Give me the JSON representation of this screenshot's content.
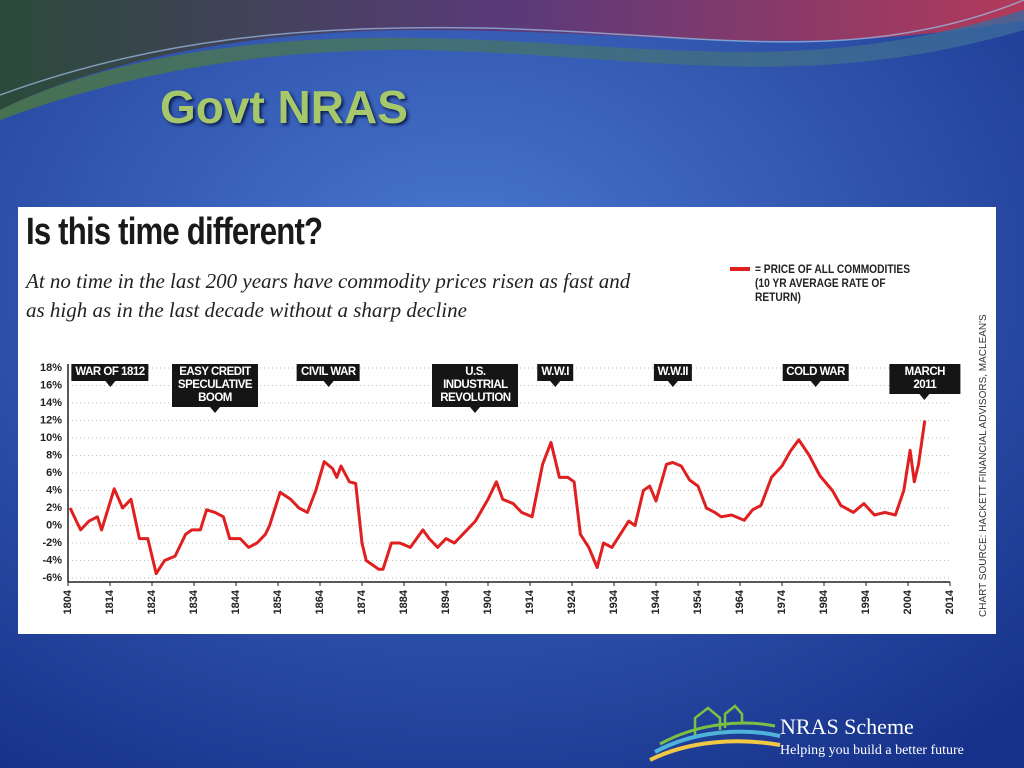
{
  "slide": {
    "title": "Govt NRAS",
    "footer_title": "NRAS Scheme",
    "footer_tagline": "Helping you build a better future"
  },
  "chart_data": {
    "type": "line",
    "title": "Is this time different?",
    "subtitle": "At no time in the last 200 years have commodity prices risen as fast and as high as in the last decade without a sharp decline",
    "source": "CHART SOURCE: HACKETT FINANCIAL ADVISORS, MACLEAN'S",
    "series": [
      {
        "name": "= PRICE OF ALL COMMODITIES (10 YR AVERAGE RATE OF RETURN)",
        "color": "#e02020",
        "values": [
          2,
          -0.5,
          0.5,
          1,
          -0.5,
          4.2,
          2,
          3,
          -1.5,
          -1.5,
          -5.5,
          -4,
          -3.5,
          -1,
          -0.5,
          -0.5,
          1.8,
          1.5,
          1,
          -1.5,
          -1.5,
          -2.5,
          -2,
          -1,
          0,
          3.8,
          3,
          2,
          1.5,
          4,
          7.3,
          6.5,
          5.5,
          6.8,
          5,
          4.8,
          -2,
          -4,
          -5,
          -5,
          -2,
          -2,
          -2.5,
          -0.5,
          -1.5,
          -2.5,
          -1.5,
          -2,
          -1,
          0.5,
          3,
          5,
          3,
          2.5,
          1.5,
          1,
          7,
          9.5,
          5.5,
          5.5,
          5,
          -1,
          -2.5,
          -4.8,
          -2,
          -2.5,
          -1,
          0.5,
          0,
          4,
          4.5,
          2.8,
          7,
          7.2,
          6.8,
          5.2,
          4.5,
          2,
          1.5,
          1,
          1.2,
          0.6,
          1.8,
          2.3,
          5.5,
          6.8,
          8.5,
          9.8,
          8,
          5.7,
          4,
          2.3,
          1.5,
          2.5,
          1.2,
          1.5,
          1.2,
          4,
          8.6,
          5,
          7,
          12
        ]
      }
    ],
    "x": [
      1804.5,
      1807,
      1809,
      1811,
      1812,
      1815,
      1817,
      1819,
      1821,
      1823,
      1825,
      1827,
      1829.5,
      1832,
      1833.5,
      1835.5,
      1837,
      1839,
      1841,
      1842.5,
      1845,
      1847,
      1849,
      1851,
      1852,
      1854.5,
      1857,
      1859,
      1861,
      1863,
      1865,
      1867,
      1868,
      1869,
      1871,
      1872.5,
      1874,
      1875,
      1878,
      1879,
      1881,
      1883,
      1885.5,
      1888.5,
      1890,
      1892,
      1894,
      1896,
      1898,
      1901,
      1904,
      1906,
      1907.5,
      1910,
      1912,
      1914.5,
      1917,
      1919,
      1921,
      1923,
      1924.5,
      1926,
      1928,
      1930,
      1931.5,
      1933.5,
      1935.5,
      1937.5,
      1939,
      1941,
      1942.5,
      1944,
      1946.5,
      1948,
      1950,
      1952,
      1954,
      1956,
      1958,
      1959.5,
      1962,
      1965,
      1967,
      1969,
      1971.5,
      1974,
      1976,
      1978,
      1980.5,
      1983,
      1986,
      1988,
      1991,
      1993.5,
      1996,
      1998.5,
      2001,
      2003,
      2004.5,
      2005.5,
      2006.5,
      2008
    ],
    "xlim": [
      1804,
      2014
    ],
    "xticks": [
      1804,
      1814,
      1824,
      1834,
      1844,
      1854,
      1864,
      1874,
      1884,
      1894,
      1904,
      1914,
      1924,
      1934,
      1944,
      1954,
      1964,
      1974,
      1984,
      1994,
      2004,
      2014
    ],
    "ylim": [
      -6,
      18
    ],
    "yticks": [
      {
        "value": -6,
        "label": "-6%"
      },
      {
        "value": -4,
        "label": "-4%"
      },
      {
        "value": -2,
        "label": "-2%"
      },
      {
        "value": 0,
        "label": "0%"
      },
      {
        "value": 2,
        "label": "2%"
      },
      {
        "value": 4,
        "label": "4%"
      },
      {
        "value": 6,
        "label": "6%"
      },
      {
        "value": 8,
        "label": "8%"
      },
      {
        "value": 10,
        "label": "10%"
      },
      {
        "value": 12,
        "label": "12%"
      },
      {
        "value": 14,
        "label": "14%"
      },
      {
        "value": 16,
        "label": "16%"
      },
      {
        "value": 18,
        "label": "18%"
      }
    ],
    "grid": true,
    "annotations": [
      {
        "text": "WAR OF 1812",
        "x": 1814
      },
      {
        "text": "EASY CREDIT SPECULATIVE BOOM",
        "x": 1839
      },
      {
        "text": "CIVIL WAR",
        "x": 1866
      },
      {
        "text": "U.S. INDUSTRIAL REVOLUTION",
        "x": 1901
      },
      {
        "text": "W.W.I",
        "x": 1920
      },
      {
        "text": "W.W.II",
        "x": 1948
      },
      {
        "text": "COLD WAR",
        "x": 1982
      },
      {
        "text": "MARCH 2011",
        "x": 2008
      }
    ]
  }
}
